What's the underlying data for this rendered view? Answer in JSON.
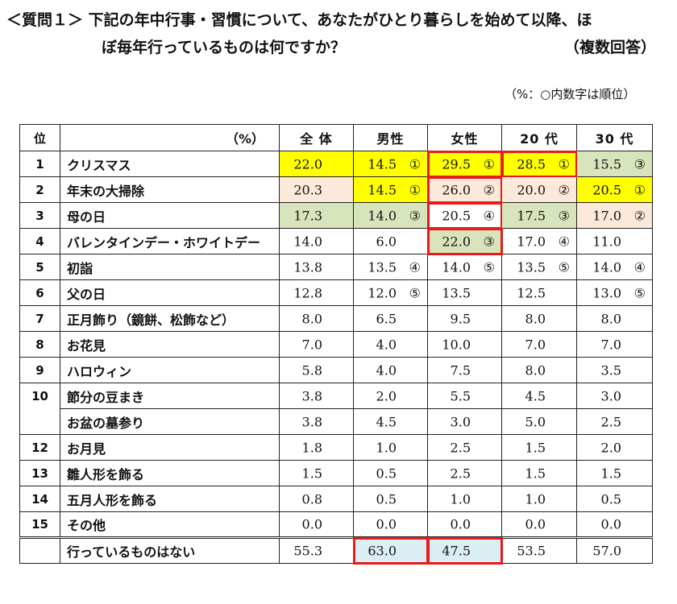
{
  "question": {
    "line1": "＜質問１＞ 下記の年中行事・習慣について、あなたがひとり暮らしを始めて以降、ほ",
    "line2": "ぼ毎年行っているものは何ですか？",
    "multi": "（複数回答）"
  },
  "note": "（%：○内数字は順位）",
  "table": {
    "headers": [
      "位",
      "（%）",
      "全 体",
      "男性",
      "女性",
      "20 代",
      "30 代"
    ],
    "rows": [
      {
        "rank": "1",
        "item": "クリスマス",
        "cells": [
          {
            "v": "22.0",
            "r": "",
            "bg": "yellow"
          },
          {
            "v": "14.5",
            "r": "①",
            "bg": "yellow"
          },
          {
            "v": "29.5",
            "r": "①",
            "bg": "yellow",
            "box": true
          },
          {
            "v": "28.5",
            "r": "①",
            "bg": "yellow",
            "box": true
          },
          {
            "v": "15.5",
            "r": "③",
            "bg": "green"
          }
        ]
      },
      {
        "rank": "2",
        "item": "年末の大掃除",
        "cells": [
          {
            "v": "20.3",
            "r": "",
            "bg": "peach"
          },
          {
            "v": "14.5",
            "r": "①",
            "bg": "yellow"
          },
          {
            "v": "26.0",
            "r": "②",
            "bg": "peach",
            "box": true
          },
          {
            "v": "20.0",
            "r": "②",
            "bg": "peach"
          },
          {
            "v": "20.5",
            "r": "①",
            "bg": "yellow"
          }
        ]
      },
      {
        "rank": "3",
        "item": "母の日",
        "cells": [
          {
            "v": "17.3",
            "r": "",
            "bg": "green"
          },
          {
            "v": "14.0",
            "r": "③",
            "bg": "green"
          },
          {
            "v": "20.5",
            "r": "④",
            "bg": "",
            "box": true
          },
          {
            "v": "17.5",
            "r": "③",
            "bg": "green"
          },
          {
            "v": "17.0",
            "r": "②",
            "bg": "peach"
          }
        ]
      },
      {
        "rank": "4",
        "item": "バレンタインデー・ホワイトデー",
        "cells": [
          {
            "v": "14.0",
            "r": "",
            "bg": ""
          },
          {
            "v": "6.0",
            "r": "",
            "bg": ""
          },
          {
            "v": "22.0",
            "r": "③",
            "bg": "green",
            "box": true
          },
          {
            "v": "17.0",
            "r": "④",
            "bg": ""
          },
          {
            "v": "11.0",
            "r": "",
            "bg": ""
          }
        ]
      },
      {
        "rank": "5",
        "item": "初詣",
        "cells": [
          {
            "v": "13.8",
            "r": "",
            "bg": ""
          },
          {
            "v": "13.5",
            "r": "④",
            "bg": ""
          },
          {
            "v": "14.0",
            "r": "⑤",
            "bg": ""
          },
          {
            "v": "13.5",
            "r": "⑤",
            "bg": ""
          },
          {
            "v": "14.0",
            "r": "④",
            "bg": ""
          }
        ]
      },
      {
        "rank": "6",
        "item": "父の日",
        "cells": [
          {
            "v": "12.8",
            "r": "",
            "bg": ""
          },
          {
            "v": "12.0",
            "r": "⑤",
            "bg": ""
          },
          {
            "v": "13.5",
            "r": "",
            "bg": ""
          },
          {
            "v": "12.5",
            "r": "",
            "bg": ""
          },
          {
            "v": "13.0",
            "r": "⑤",
            "bg": ""
          }
        ]
      },
      {
        "rank": "7",
        "item": "正月飾り（鏡餅、松飾など）",
        "cells": [
          {
            "v": "8.0",
            "r": "",
            "bg": ""
          },
          {
            "v": "6.5",
            "r": "",
            "bg": ""
          },
          {
            "v": "9.5",
            "r": "",
            "bg": ""
          },
          {
            "v": "8.0",
            "r": "",
            "bg": ""
          },
          {
            "v": "8.0",
            "r": "",
            "bg": ""
          }
        ]
      },
      {
        "rank": "8",
        "item": "お花見",
        "cells": [
          {
            "v": "7.0",
            "r": "",
            "bg": ""
          },
          {
            "v": "4.0",
            "r": "",
            "bg": ""
          },
          {
            "v": "10.0",
            "r": "",
            "bg": ""
          },
          {
            "v": "7.0",
            "r": "",
            "bg": ""
          },
          {
            "v": "7.0",
            "r": "",
            "bg": ""
          }
        ]
      },
      {
        "rank": "9",
        "item": "ハロウィン",
        "cells": [
          {
            "v": "5.8",
            "r": "",
            "bg": ""
          },
          {
            "v": "4.0",
            "r": "",
            "bg": ""
          },
          {
            "v": "7.5",
            "r": "",
            "bg": ""
          },
          {
            "v": "8.0",
            "r": "",
            "bg": ""
          },
          {
            "v": "3.5",
            "r": "",
            "bg": ""
          }
        ]
      },
      {
        "rank": "10",
        "item": "節分の豆まき",
        "cells": [
          {
            "v": "3.8",
            "r": "",
            "bg": ""
          },
          {
            "v": "2.0",
            "r": "",
            "bg": ""
          },
          {
            "v": "5.5",
            "r": "",
            "bg": ""
          },
          {
            "v": "4.5",
            "r": "",
            "bg": ""
          },
          {
            "v": "3.0",
            "r": "",
            "bg": ""
          }
        ]
      },
      {
        "rank": "",
        "item": "お盆の墓参り",
        "cells": [
          {
            "v": "3.8",
            "r": "",
            "bg": ""
          },
          {
            "v": "4.5",
            "r": "",
            "bg": ""
          },
          {
            "v": "3.0",
            "r": "",
            "bg": ""
          },
          {
            "v": "5.0",
            "r": "",
            "bg": ""
          },
          {
            "v": "2.5",
            "r": "",
            "bg": ""
          }
        ]
      },
      {
        "rank": "12",
        "item": "お月見",
        "cells": [
          {
            "v": "1.8",
            "r": "",
            "bg": ""
          },
          {
            "v": "1.0",
            "r": "",
            "bg": ""
          },
          {
            "v": "2.5",
            "r": "",
            "bg": ""
          },
          {
            "v": "1.5",
            "r": "",
            "bg": ""
          },
          {
            "v": "2.0",
            "r": "",
            "bg": ""
          }
        ]
      },
      {
        "rank": "13",
        "item": "雛人形を飾る",
        "cells": [
          {
            "v": "1.5",
            "r": "",
            "bg": ""
          },
          {
            "v": "0.5",
            "r": "",
            "bg": ""
          },
          {
            "v": "2.5",
            "r": "",
            "bg": ""
          },
          {
            "v": "1.5",
            "r": "",
            "bg": ""
          },
          {
            "v": "1.5",
            "r": "",
            "bg": ""
          }
        ]
      },
      {
        "rank": "14",
        "item": "五月人形を飾る",
        "cells": [
          {
            "v": "0.8",
            "r": "",
            "bg": ""
          },
          {
            "v": "0.5",
            "r": "",
            "bg": ""
          },
          {
            "v": "1.0",
            "r": "",
            "bg": ""
          },
          {
            "v": "1.0",
            "r": "",
            "bg": ""
          },
          {
            "v": "0.5",
            "r": "",
            "bg": ""
          }
        ]
      },
      {
        "rank": "15",
        "item": "その他",
        "cells": [
          {
            "v": "0.0",
            "r": "",
            "bg": ""
          },
          {
            "v": "0.0",
            "r": "",
            "bg": ""
          },
          {
            "v": "0.0",
            "r": "",
            "bg": ""
          },
          {
            "v": "0.0",
            "r": "",
            "bg": ""
          },
          {
            "v": "0.0",
            "r": "",
            "bg": ""
          }
        ]
      }
    ],
    "summary": {
      "rank": "",
      "item": "行っているものはない",
      "cells": [
        {
          "v": "55.3",
          "r": "",
          "bg": ""
        },
        {
          "v": "63.0",
          "r": "",
          "bg": "blue"
        },
        {
          "v": "47.5",
          "r": "",
          "bg": "blue"
        },
        {
          "v": "53.5",
          "r": "",
          "bg": ""
        },
        {
          "v": "57.0",
          "r": "",
          "bg": ""
        }
      ]
    }
  },
  "colors": {
    "yellow": "#ffff00",
    "green": "#d8e4bc",
    "peach": "#fde9d9",
    "blue": "#dbeef4",
    "red_box": "#e81b1b"
  }
}
